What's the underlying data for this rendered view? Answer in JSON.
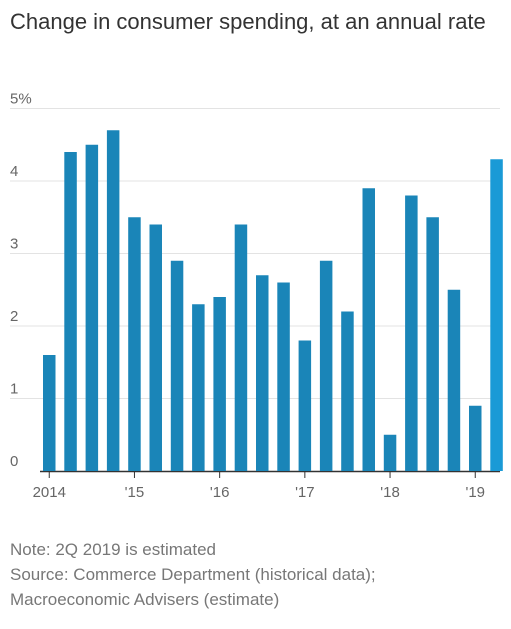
{
  "chart_data": {
    "type": "bar",
    "title": "Change in consumer spending, at an annual rate",
    "ylabel": "",
    "xlabel": "",
    "ylim": [
      0,
      5
    ],
    "y_ticks": [
      0,
      1,
      2,
      3,
      4,
      5
    ],
    "y_tick_labels": [
      "0",
      "1",
      "2",
      "3",
      "4",
      "5%"
    ],
    "x_tick_labels": [
      "2014",
      "'15",
      "'16",
      "'17",
      "'18",
      "'19"
    ],
    "categories": [
      "1Q 2014",
      "2Q 2014",
      "3Q 2014",
      "4Q 2014",
      "1Q 2015",
      "2Q 2015",
      "3Q 2015",
      "4Q 2015",
      "1Q 2016",
      "2Q 2016",
      "3Q 2016",
      "4Q 2016",
      "1Q 2017",
      "2Q 2017",
      "3Q 2017",
      "4Q 2017",
      "1Q 2018",
      "2Q 2018",
      "3Q 2018",
      "4Q 2018",
      "1Q 2019",
      "2Q 2019"
    ],
    "values": [
      1.6,
      4.4,
      4.5,
      4.7,
      3.5,
      3.4,
      2.9,
      2.3,
      2.4,
      3.4,
      2.7,
      2.6,
      1.8,
      2.9,
      2.2,
      3.9,
      0.5,
      3.8,
      3.5,
      2.5,
      0.9,
      4.3
    ],
    "grid": true,
    "colors": {
      "bar": "#1a85b8",
      "estimate": "#1a9ad6",
      "grid": "#e3e3e3",
      "axis": "#333333"
    }
  },
  "notes": {
    "note": "Note: 2Q 2019 is estimated",
    "source_1": "Source: Commerce Department (historical data);",
    "source_2": "Macroeconomic Advisers (estimate)"
  }
}
